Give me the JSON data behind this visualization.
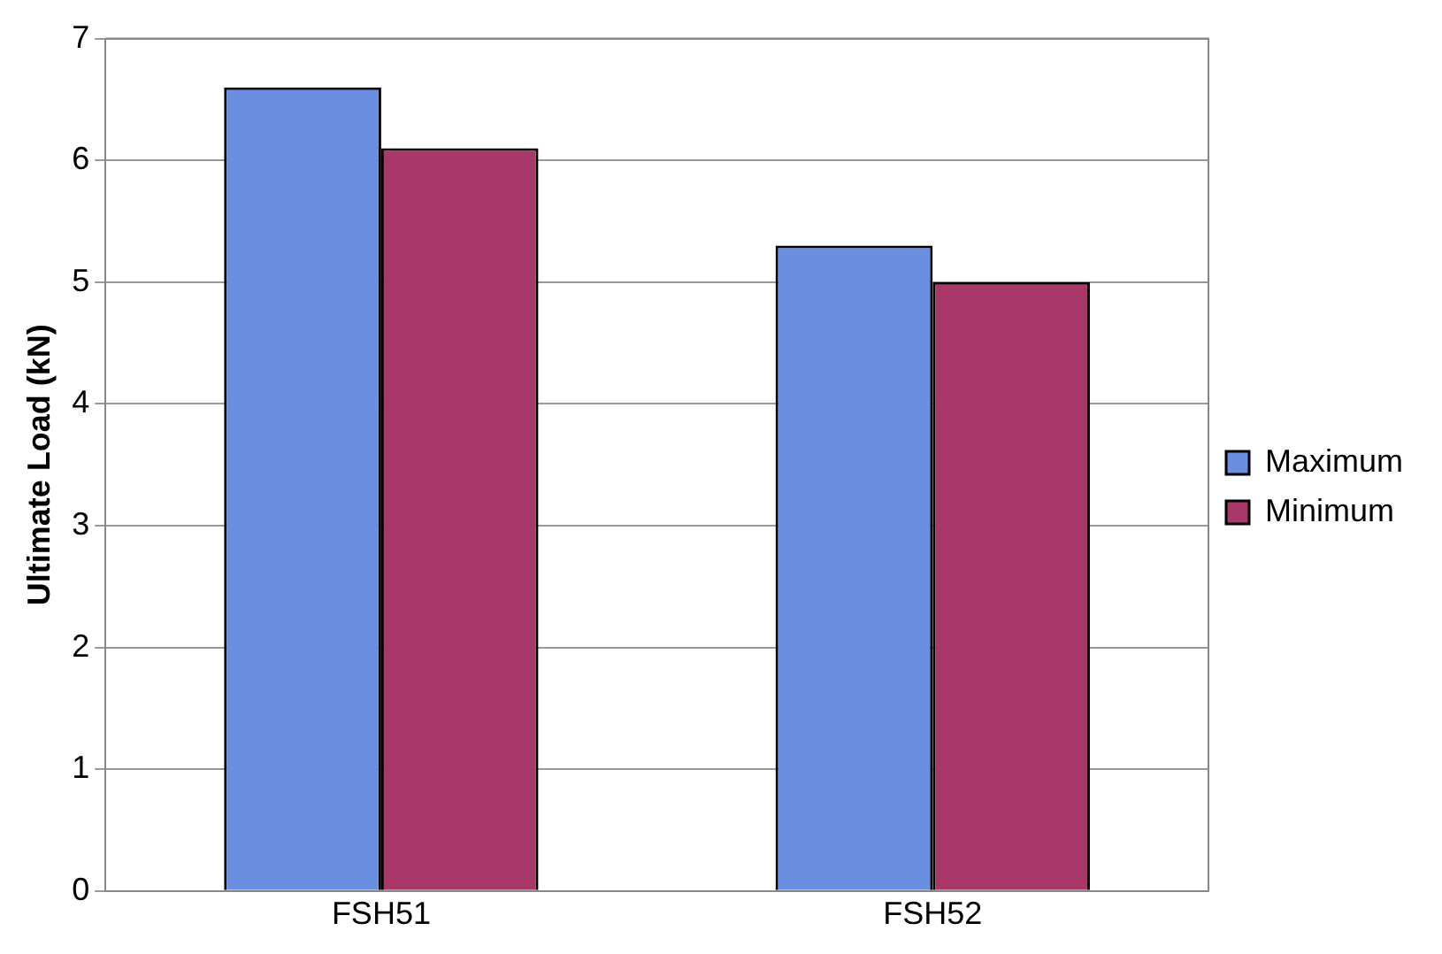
{
  "chart_data": {
    "type": "bar",
    "ylabel": "Ultimate Load (kN)",
    "categories": [
      "FSH51",
      "FSH52"
    ],
    "series": [
      {
        "name": "Maximum",
        "color": "#6b8fe0",
        "values": [
          6.6,
          5.3
        ]
      },
      {
        "name": "Minimum",
        "color": "#a8386a",
        "values": [
          6.1,
          5.0
        ]
      }
    ],
    "ylim": [
      0,
      7
    ],
    "yticks": [
      0,
      1,
      2,
      3,
      4,
      5,
      6,
      7
    ],
    "grid": "y",
    "legend": "right"
  }
}
